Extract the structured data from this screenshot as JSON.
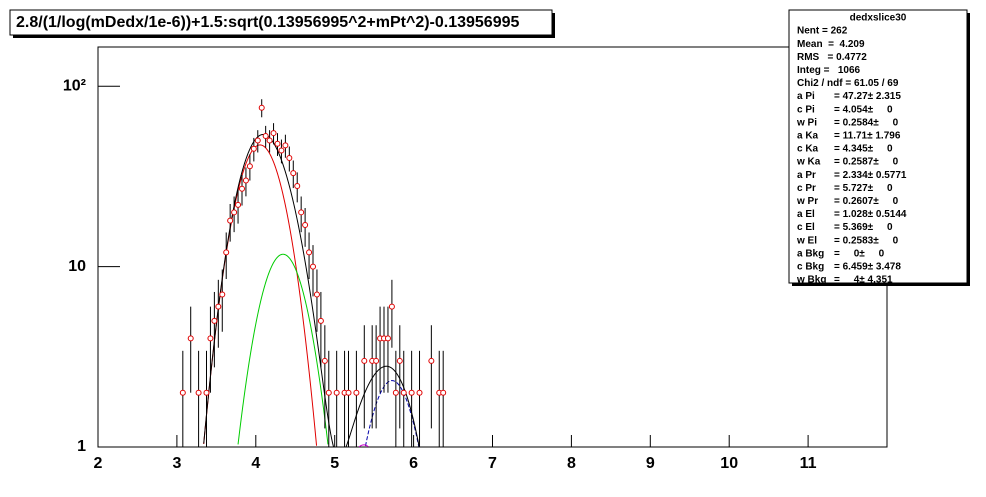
{
  "chart_data": {
    "type": "errorbar",
    "title": "2.8/(1/log(mDedx/1e-6))+1.5:sqrt(0.13956995^2+mPt^2)-0.13956995",
    "xlim": [
      2,
      12
    ],
    "xticks": [
      2,
      3,
      4,
      5,
      6,
      7,
      8,
      9,
      10,
      11
    ],
    "ylim": [
      1,
      165
    ],
    "yticks": [
      1,
      10,
      {
        "value": 100,
        "label": "10²"
      }
    ],
    "log_y": true,
    "marker_color": "#e00000",
    "x": [
      3.075,
      3.175,
      3.275,
      3.375,
      3.425,
      3.475,
      3.525,
      3.575,
      3.625,
      3.675,
      3.725,
      3.775,
      3.825,
      3.875,
      3.925,
      3.975,
      4.025,
      4.075,
      4.125,
      4.175,
      4.225,
      4.275,
      4.325,
      4.375,
      4.425,
      4.475,
      4.525,
      4.575,
      4.625,
      4.675,
      4.725,
      4.775,
      4.825,
      4.875,
      4.925,
      5.025,
      5.125,
      5.175,
      5.275,
      5.375,
      5.475,
      5.525,
      5.575,
      5.625,
      5.675,
      5.725,
      5.775,
      5.825,
      5.875,
      5.975,
      6.075,
      6.225,
      6.325,
      6.375
    ],
    "values": [
      2,
      4,
      2,
      2,
      4,
      5,
      6,
      7,
      12,
      18,
      20,
      22,
      27,
      30,
      36,
      45,
      50,
      76,
      53,
      50,
      55,
      48,
      44,
      47,
      40,
      33,
      28,
      20,
      17,
      12,
      10,
      7,
      5,
      3,
      2,
      2,
      2,
      2,
      2,
      3,
      3,
      3,
      4,
      4,
      4,
      6,
      2,
      3,
      2,
      2,
      2,
      3,
      2,
      2
    ],
    "errors": [
      1.414,
      2,
      1.414,
      1.414,
      2,
      2.236,
      2.449,
      2.646,
      3.464,
      4.243,
      4.472,
      4.69,
      5.196,
      5.477,
      6,
      6.708,
      7.071,
      8.718,
      7.28,
      7.071,
      7.416,
      6.928,
      6.633,
      6.856,
      6.325,
      5.745,
      5.292,
      4.472,
      4.123,
      3.464,
      3.162,
      2.646,
      2.236,
      1.732,
      1.414,
      1.414,
      1.414,
      1.414,
      1.414,
      1.732,
      1.732,
      1.732,
      2,
      2,
      2,
      2.449,
      1.414,
      1.732,
      1.414,
      1.414,
      1.414,
      1.732,
      1.414,
      1.414
    ],
    "stats": {
      "title": "dedxslice30",
      "lines": [
        "Nent = 262",
        "Mean  =  4.209",
        "RMS   = 0.4772",
        "Integ =   1066",
        "Chi2 / ndf = 61.05 / 69"
      ]
    },
    "fit_total_color": "#000000",
    "fits": [
      {
        "color": "#e00000",
        "params": [
          {
            "label": "a Pi",
            "text": "= 47.27± 2.315",
            "value": 47.27
          },
          {
            "label": "c Pi",
            "text": "= 4.054±     0",
            "value": 4.054
          },
          {
            "label": "w Pi",
            "text": "= 0.2584±     0",
            "value": 0.2584
          }
        ]
      },
      {
        "color": "#00cc00",
        "params": [
          {
            "label": "a Ka",
            "text": "= 11.71± 1.796",
            "value": 11.71
          },
          {
            "label": "c Ka",
            "text": "= 4.345±     0",
            "value": 4.345
          },
          {
            "label": "w Ka",
            "text": "= 0.2587±     0",
            "value": 0.2587
          }
        ]
      },
      {
        "color": "#0000aa",
        "params": [
          {
            "label": "a Pr",
            "text": "= 2.334± 0.5771",
            "value": 2.334
          },
          {
            "label": "c Pr",
            "text": "= 5.727±     0",
            "value": 5.727
          },
          {
            "label": "w Pr",
            "text": "= 0.2607±     0",
            "value": 0.2607
          }
        ]
      },
      {
        "color": "#cc00cc",
        "params": [
          {
            "label": "a El",
            "text": "= 1.028± 0.5144",
            "value": 1.028
          },
          {
            "label": "c El",
            "text": "= 5.369±     0",
            "value": 5.369
          },
          {
            "label": "w El",
            "text": "= 0.2583±     0",
            "value": 0.2583
          }
        ]
      },
      {
        "color": "#888888",
        "params": [
          {
            "label": "a Bkg",
            "text": "=     0±     0",
            "value": 0
          },
          {
            "label": "c Bkg",
            "text": "= 6.459± 3.478",
            "value": 6.459
          },
          {
            "label": "w Bkg",
            "text": "=     4± 4.351",
            "value": 4
          }
        ]
      }
    ]
  }
}
